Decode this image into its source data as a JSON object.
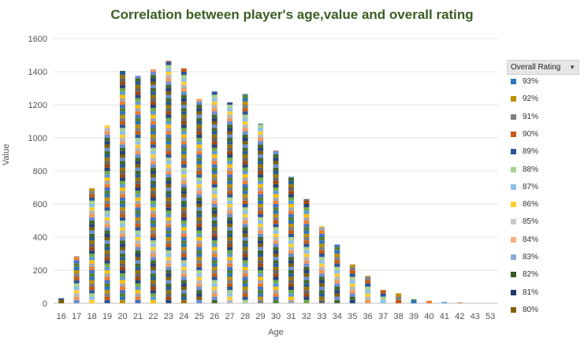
{
  "chart_data": {
    "type": "bar",
    "stacked": true,
    "title": "Correlation between player's age,value and overall rating",
    "xlabel": "Age",
    "ylabel": "Value",
    "ylim": [
      0,
      1600
    ],
    "yticks": [
      0,
      200,
      400,
      600,
      800,
      1000,
      1200,
      1400,
      1600
    ],
    "grid": true,
    "legend_position": "right",
    "legend_title": "Overall Rating",
    "categories": [
      "16",
      "17",
      "18",
      "19",
      "20",
      "21",
      "22",
      "23",
      "24",
      "25",
      "26",
      "27",
      "28",
      "29",
      "30",
      "31",
      "32",
      "33",
      "34",
      "35",
      "36",
      "37",
      "38",
      "39",
      "40",
      "41",
      "42",
      "43",
      "53"
    ],
    "totals": [
      30,
      285,
      695,
      1075,
      1405,
      1375,
      1415,
      1465,
      1420,
      1235,
      1280,
      1215,
      1265,
      1085,
      925,
      765,
      630,
      465,
      355,
      235,
      165,
      80,
      60,
      25,
      15,
      8,
      3,
      0,
      0
    ],
    "segment_palette": [
      "#7f6000",
      "#264478",
      "#43682b",
      "#698ed0",
      "#f1975a",
      "#b7b7b7",
      "#ffcd33",
      "#8cc1e9",
      "#a9d18e",
      "#2f5597",
      "#c55a11",
      "#7f7f7f",
      "#bf9000",
      "#2e75b6",
      "#548235",
      "#4472c4",
      "#ed7d31",
      "#a5a5a5",
      "#ffc000",
      "#5b9bd5",
      "#70ad47",
      "#264478",
      "#9e480e",
      "#636363",
      "#997300",
      "#255e91",
      "#43682b",
      "#698ed0"
    ],
    "segment_unit": 20,
    "legend_items": [
      {
        "label": "93%",
        "color": "#2e75b6"
      },
      {
        "label": "92%",
        "color": "#bf9000"
      },
      {
        "label": "91%",
        "color": "#7f7f7f"
      },
      {
        "label": "90%",
        "color": "#c55a11"
      },
      {
        "label": "89%",
        "color": "#2f5597"
      },
      {
        "label": "88%",
        "color": "#a9d18e"
      },
      {
        "label": "87%",
        "color": "#8cc1e9"
      },
      {
        "label": "86%",
        "color": "#ffcd33"
      },
      {
        "label": "85%",
        "color": "#c9c9c9"
      },
      {
        "label": "84%",
        "color": "#f4b183"
      },
      {
        "label": "83%",
        "color": "#8faadc"
      },
      {
        "label": "82%",
        "color": "#385723"
      },
      {
        "label": "81%",
        "color": "#1f3864"
      },
      {
        "label": "80%",
        "color": "#7f6000"
      }
    ]
  }
}
